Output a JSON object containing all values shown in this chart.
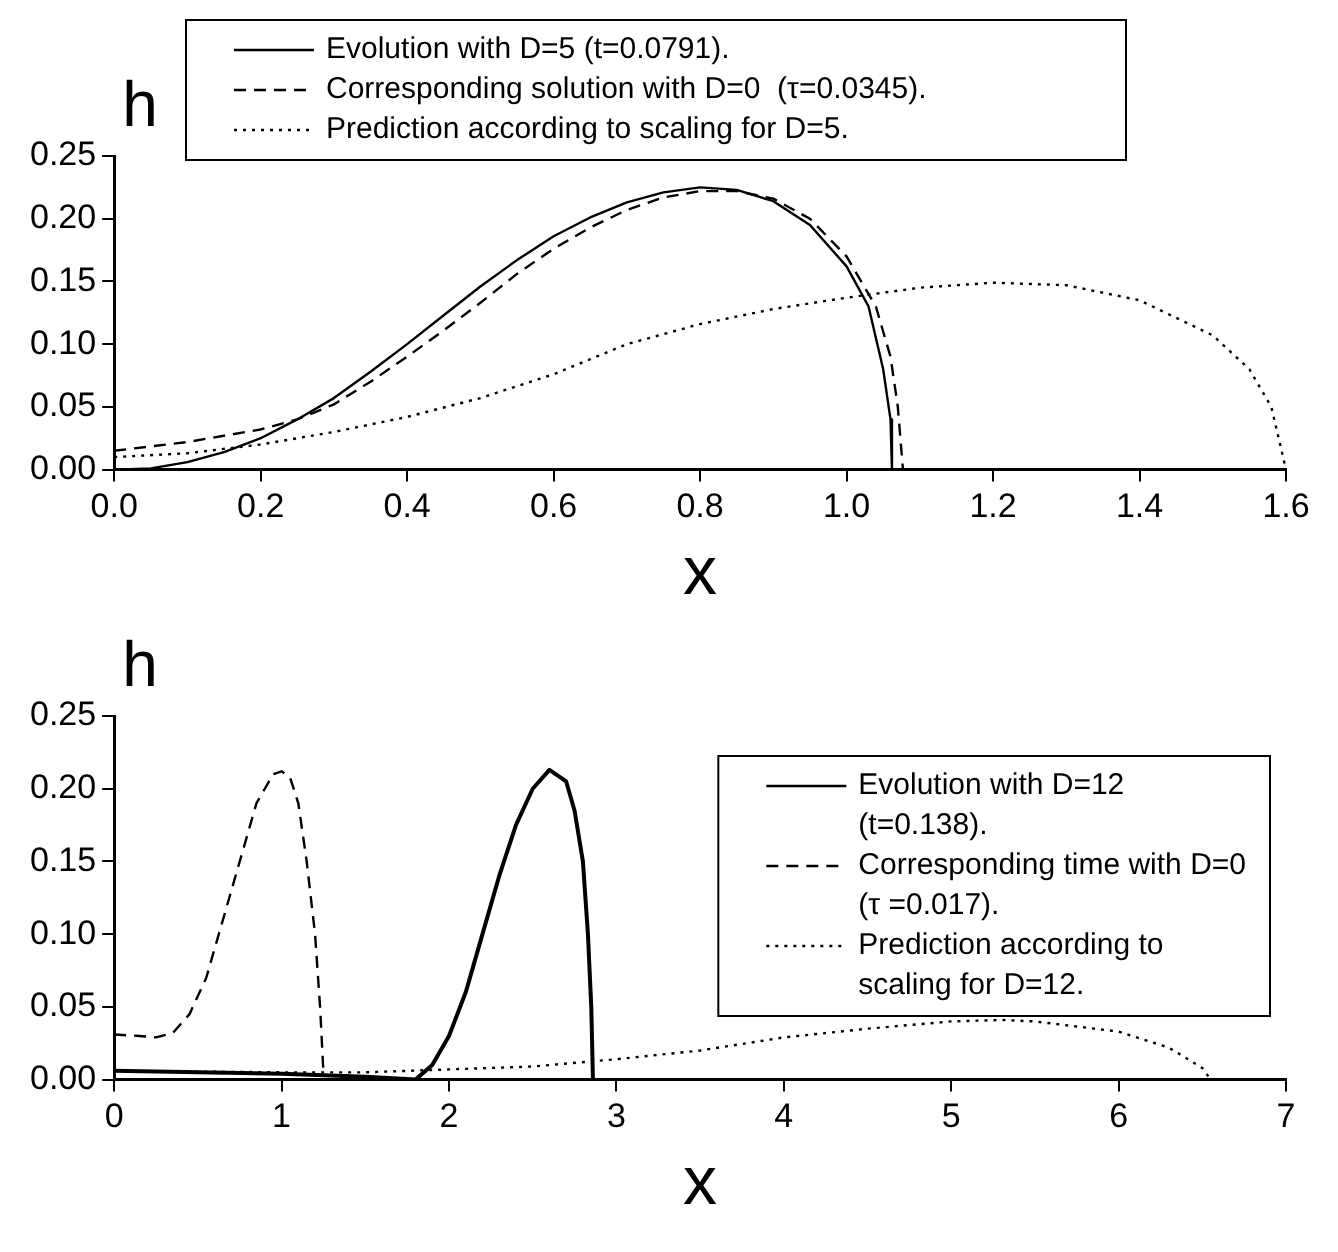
{
  "chart_data": [
    {
      "type": "line",
      "xlabel": "x",
      "ylabel": "h",
      "legend": "top",
      "grid": false,
      "xlim": [
        0,
        1.6
      ],
      "xticks": [
        {
          "value": 0,
          "label": "0.0"
        },
        {
          "value": 0.2,
          "label": "0.2"
        },
        {
          "value": 0.4,
          "label": "0.4"
        },
        {
          "value": 0.6,
          "label": "0.6"
        },
        {
          "value": 0.8,
          "label": "0.8"
        },
        {
          "value": 1,
          "label": "1.0"
        },
        {
          "value": 1.2,
          "label": "1.2"
        },
        {
          "value": 1.4,
          "label": "1.4"
        },
        {
          "value": 1.6,
          "label": "1.6"
        }
      ],
      "ylim": [
        0,
        0.25
      ],
      "yticks": [
        {
          "value": 0,
          "label": "0.00"
        },
        {
          "value": 0.05,
          "label": "0.05"
        },
        {
          "value": 0.1,
          "label": "0.10"
        },
        {
          "value": 0.15,
          "label": "0.15"
        },
        {
          "value": 0.2,
          "label": "0.20"
        },
        {
          "value": 0.25,
          "label": "0.25"
        }
      ],
      "series": [
        {
          "name": "Evolution with D=5 (t=0.0791).",
          "color": "#000000",
          "line_style": "solid",
          "x": [
            0,
            0.05,
            0.1,
            0.15,
            0.2,
            0.25,
            0.3,
            0.35,
            0.4,
            0.45,
            0.5,
            0.55,
            0.6,
            0.65,
            0.7,
            0.75,
            0.8,
            0.85,
            0.9,
            0.95,
            1.0,
            1.03,
            1.05,
            1.06,
            1.062
          ],
          "values": [
            0,
            0.001,
            0.006,
            0.014,
            0.025,
            0.04,
            0.057,
            0.078,
            0.1,
            0.123,
            0.146,
            0.167,
            0.186,
            0.201,
            0.213,
            0.221,
            0.225,
            0.223,
            0.214,
            0.195,
            0.162,
            0.13,
            0.08,
            0.04,
            0
          ]
        },
        {
          "name": "Corresponding solution with D=0  (τ=0.0345).",
          "color": "#000000",
          "line_style": "dashed",
          "x": [
            0,
            0.1,
            0.2,
            0.25,
            0.3,
            0.35,
            0.4,
            0.45,
            0.5,
            0.55,
            0.6,
            0.65,
            0.7,
            0.75,
            0.8,
            0.85,
            0.9,
            0.95,
            1.0,
            1.04,
            1.06,
            1.07,
            1.077
          ],
          "values": [
            0.015,
            0.022,
            0.032,
            0.04,
            0.052,
            0.07,
            0.09,
            0.111,
            0.133,
            0.156,
            0.176,
            0.193,
            0.207,
            0.217,
            0.222,
            0.222,
            0.216,
            0.2,
            0.17,
            0.13,
            0.09,
            0.05,
            0
          ]
        },
        {
          "name": "Prediction according to scaling for D=5.",
          "color": "#000000",
          "line_style": "dotted",
          "x": [
            0,
            0.1,
            0.2,
            0.3,
            0.4,
            0.5,
            0.6,
            0.7,
            0.8,
            0.9,
            1.0,
            1.1,
            1.2,
            1.3,
            1.4,
            1.5,
            1.55,
            1.58,
            1.6
          ],
          "values": [
            0.01,
            0.013,
            0.02,
            0.03,
            0.042,
            0.057,
            0.076,
            0.1,
            0.116,
            0.128,
            0.137,
            0.145,
            0.149,
            0.147,
            0.135,
            0.107,
            0.08,
            0.05,
            0
          ]
        }
      ]
    },
    {
      "type": "line",
      "xlabel": "x",
      "ylabel": "h",
      "legend": "top right",
      "grid": false,
      "xlim": [
        0,
        7
      ],
      "xticks": [
        0,
        1,
        2,
        3,
        4,
        5,
        6,
        7
      ],
      "ylim": [
        0,
        0.25
      ],
      "yticks": [
        {
          "value": 0,
          "label": "0.00"
        },
        {
          "value": 0.05,
          "label": "0.05"
        },
        {
          "value": 0.1,
          "label": "0.10"
        },
        {
          "value": 0.15,
          "label": "0.15"
        },
        {
          "value": 0.2,
          "label": "0.20"
        },
        {
          "value": 0.25,
          "label": "0.25"
        }
      ],
      "series": [
        {
          "name": "Evolution with D=12 (t=0.138).",
          "color": "#000000",
          "line_style": "solid",
          "x": [
            0,
            0.5,
            1,
            1.5,
            1.8,
            1.9,
            2.0,
            2.1,
            2.2,
            2.3,
            2.4,
            2.5,
            2.6,
            2.7,
            2.75,
            2.8,
            2.83,
            2.85,
            2.86
          ],
          "values": [
            0.006,
            0.005,
            0.004,
            0.002,
            0,
            0.01,
            0.03,
            0.06,
            0.1,
            0.14,
            0.175,
            0.2,
            0.213,
            0.205,
            0.185,
            0.15,
            0.1,
            0.05,
            0
          ]
        },
        {
          "name": "Corresponding time with D=0 (τ =0.017).",
          "color": "#000000",
          "line_style": "dashed",
          "x": [
            0,
            0.15,
            0.25,
            0.35,
            0.45,
            0.55,
            0.65,
            0.75,
            0.85,
            0.95,
            1.0,
            1.05,
            1.1,
            1.15,
            1.2,
            1.23,
            1.25
          ],
          "values": [
            0.031,
            0.03,
            0.029,
            0.032,
            0.045,
            0.07,
            0.11,
            0.15,
            0.19,
            0.21,
            0.212,
            0.208,
            0.19,
            0.15,
            0.1,
            0.05,
            0.005
          ]
        },
        {
          "name": "Prediction according to scaling for D=12.",
          "color": "#000000",
          "line_style": "dotted",
          "x": [
            0,
            1,
            1.5,
            2,
            2.5,
            3,
            3.5,
            4,
            4.5,
            5,
            5.3,
            5.5,
            6,
            6.3,
            6.5,
            6.55
          ],
          "values": [
            0.006,
            0.005,
            0.005,
            0.007,
            0.009,
            0.014,
            0.02,
            0.029,
            0.035,
            0.04,
            0.041,
            0.04,
            0.033,
            0.022,
            0.008,
            0
          ]
        }
      ]
    }
  ]
}
